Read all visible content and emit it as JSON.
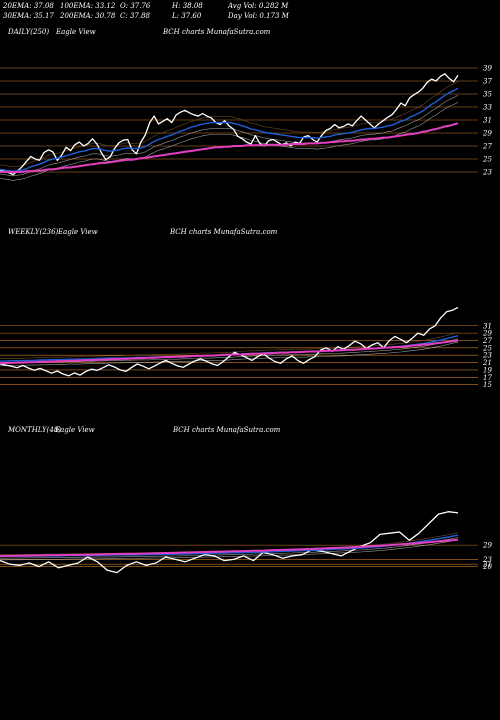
{
  "header": {
    "row1": [
      {
        "label": "20EMA:",
        "value": "37.08"
      },
      {
        "label": "100EMA:",
        "value": "33.12"
      },
      {
        "label": "O:",
        "value": "37.76"
      },
      {
        "label": "H:",
        "value": "38.08"
      },
      {
        "label": "Avg Vol:",
        "value": "0.282  M"
      }
    ],
    "row2": [
      {
        "label": "30EMA:",
        "value": "35.17"
      },
      {
        "label": "200EMA:",
        "value": "30.78"
      },
      {
        "label": "C:",
        "value": "37.88"
      },
      {
        "label": "L:",
        "value": "37.60"
      },
      {
        "label": "Day Vol:",
        "value": "0.173  M"
      }
    ]
  },
  "panels": [
    {
      "period": "DAILY(250)",
      "view": "Eagle  View",
      "site": "BCH charts MunafaSutra.com"
    },
    {
      "period": "WEEKLY(236)",
      "view": "Eagle  View",
      "site": "BCH charts MunafaSutra.com"
    },
    {
      "period": "MONTHLY(48)",
      "view": "Eagle  View",
      "site": "BCH charts MunafaSutra.com"
    }
  ],
  "colors": {
    "background": "#000000",
    "price": "#ffffff",
    "ema20": "#1f5fd6",
    "ema200": "#e040c0",
    "grid": "#c87a2a",
    "ma_thin": "#c0c0c0"
  },
  "chart_data": [
    {
      "type": "line",
      "title": "DAILY(250)",
      "ylim": [
        21,
        41
      ],
      "y_ticks": [
        23,
        25,
        27,
        29,
        31,
        33,
        35,
        37,
        39
      ],
      "series": [
        {
          "values": [
            23.2,
            23.1,
            22.9,
            22.6,
            23.2,
            23.8,
            24.6,
            25.4,
            25.0,
            24.8,
            26.0,
            26.4,
            26.1,
            24.8,
            25.6,
            26.8,
            26.3,
            27.2,
            27.6,
            27.0,
            27.4,
            28.1,
            27.3,
            26.0,
            24.9,
            25.3,
            26.6,
            27.5,
            27.9,
            28.0,
            26.4,
            25.8,
            27.6,
            28.7,
            30.6,
            31.6,
            30.4,
            30.8,
            31.2,
            30.6,
            31.8,
            32.2,
            32.5,
            32.1,
            31.8,
            31.6,
            32.0,
            31.6,
            31.3,
            30.6,
            30.3,
            30.9,
            30.1,
            29.6,
            28.5,
            28.1,
            27.6,
            27.3,
            28.6,
            27.4,
            27.0,
            27.8,
            28.0,
            27.6,
            27.2,
            27.5,
            27.0,
            27.6,
            27.4,
            28.4,
            28.6,
            28.0,
            27.6,
            28.6,
            29.4,
            29.7,
            30.3,
            29.8,
            30.0,
            30.4,
            30.1,
            30.9,
            31.6,
            31.0,
            30.4,
            29.8,
            30.4,
            30.9,
            31.4,
            31.8,
            32.6,
            33.6,
            33.2,
            34.4,
            34.9,
            35.3,
            35.9,
            36.8,
            37.3,
            37.0,
            37.7,
            38.1,
            37.4,
            36.9,
            37.9
          ]
        },
        {
          "values": [
            23.4,
            23.3,
            23.2,
            23.1,
            23.2,
            23.3,
            23.5,
            23.8,
            24.0,
            24.2,
            24.5,
            24.8,
            25.0,
            25.1,
            25.3,
            25.5,
            25.7,
            25.9,
            26.1,
            26.2,
            26.4,
            26.6,
            26.6,
            26.5,
            26.3,
            26.2,
            26.3,
            26.4,
            26.6,
            26.7,
            26.6,
            26.6,
            26.7,
            26.9,
            27.3,
            27.7,
            28.0,
            28.2,
            28.5,
            28.7,
            29.0,
            29.3,
            29.5,
            29.8,
            30.0,
            30.2,
            30.4,
            30.5,
            30.6,
            30.6,
            30.6,
            30.6,
            30.6,
            30.5,
            30.3,
            30.1,
            29.9,
            29.6,
            29.5,
            29.3,
            29.1,
            29.0,
            28.9,
            28.8,
            28.7,
            28.6,
            28.5,
            28.4,
            28.3,
            28.3,
            28.3,
            28.3,
            28.2,
            28.3,
            28.4,
            28.5,
            28.7,
            28.8,
            28.9,
            29.0,
            29.1,
            29.3,
            29.5,
            29.6,
            29.7,
            29.7,
            29.8,
            29.9,
            30.1,
            30.2,
            30.5,
            30.8,
            31.0,
            31.4,
            31.7,
            32.0,
            32.4,
            32.9,
            33.4,
            33.8,
            34.3,
            34.8,
            35.2,
            35.5,
            35.9
          ]
        },
        {
          "values": [
            23.0,
            23.0,
            23.0,
            23.0,
            23.0,
            23.0,
            23.1,
            23.1,
            23.2,
            23.2,
            23.3,
            23.4,
            23.4,
            23.5,
            23.6,
            23.7,
            23.7,
            23.8,
            23.9,
            24.0,
            24.1,
            24.2,
            24.3,
            24.4,
            24.4,
            24.5,
            24.6,
            24.7,
            24.8,
            24.9,
            24.9,
            25.0,
            25.1,
            25.2,
            25.3,
            25.4,
            25.5,
            25.6,
            25.7,
            25.8,
            25.9,
            26.0,
            26.1,
            26.2,
            26.3,
            26.4,
            26.5,
            26.6,
            26.7,
            26.8,
            26.8,
            26.9,
            26.9,
            27.0,
            27.0,
            27.0,
            27.1,
            27.1,
            27.1,
            27.1,
            27.1,
            27.2,
            27.2,
            27.2,
            27.2,
            27.2,
            27.3,
            27.3,
            27.3,
            27.3,
            27.4,
            27.4,
            27.4,
            27.5,
            27.5,
            27.6,
            27.6,
            27.7,
            27.7,
            27.8,
            27.8,
            27.9,
            28.0,
            28.0,
            28.1,
            28.1,
            28.2,
            28.3,
            28.3,
            28.4,
            28.5,
            28.6,
            28.7,
            28.8,
            28.9,
            29.0,
            29.2,
            29.3,
            29.5,
            29.6,
            29.8,
            30.0,
            30.1,
            30.3,
            30.5
          ]
        }
      ]
    },
    {
      "type": "line",
      "title": "WEEKLY(236)",
      "ylim": [
        13,
        38
      ],
      "y_ticks": [
        15,
        17,
        19,
        21,
        23,
        25,
        27,
        29,
        31
      ],
      "series": [
        {
          "values": [
            20.6,
            20.3,
            20.0,
            19.6,
            20.2,
            19.5,
            18.9,
            19.4,
            18.8,
            18.1,
            18.7,
            17.9,
            17.4,
            18.2,
            17.6,
            18.6,
            19.2,
            18.9,
            19.6,
            20.4,
            19.8,
            19.0,
            18.6,
            19.7,
            20.6,
            20.0,
            19.3,
            20.1,
            20.9,
            21.6,
            20.8,
            20.1,
            19.7,
            20.6,
            21.4,
            22.0,
            21.4,
            20.7,
            20.2,
            21.3,
            22.6,
            23.8,
            23.1,
            22.4,
            21.6,
            22.6,
            23.4,
            22.2,
            21.3,
            20.8,
            22.0,
            22.8,
            21.6,
            20.8,
            21.8,
            22.6,
            24.4,
            25.0,
            24.1,
            25.3,
            24.6,
            25.6,
            26.8,
            26.1,
            24.8,
            25.8,
            26.4,
            25.0,
            27.0,
            28.1,
            27.3,
            26.4,
            27.6,
            29.0,
            28.4,
            30.1,
            31.0,
            33.2,
            34.8,
            35.2,
            36.0
          ]
        },
        {
          "values": [
            21.4,
            21.4,
            21.5,
            21.5,
            21.5,
            21.6,
            21.6,
            21.7,
            21.7,
            21.8,
            21.8,
            21.8,
            21.9,
            21.9,
            21.9,
            22.0,
            22.0,
            22.1,
            22.1,
            22.2,
            22.2,
            22.2,
            22.3,
            22.3,
            22.4,
            22.4,
            22.4,
            22.5,
            22.5,
            22.6,
            22.6,
            22.6,
            22.7,
            22.7,
            22.8,
            22.9,
            22.9,
            22.9,
            23.0,
            23.0,
            23.1,
            23.2,
            23.3,
            23.4,
            23.5,
            23.5,
            23.6,
            23.7,
            23.7,
            23.8,
            23.8,
            23.9,
            23.9,
            23.9,
            24.0,
            24.0,
            24.1,
            24.1,
            24.2,
            24.2,
            24.3,
            24.4,
            24.5,
            24.6,
            24.7,
            24.8,
            24.9,
            25.0,
            25.1,
            25.3,
            25.4,
            25.6,
            25.8,
            26.0,
            26.2,
            26.5,
            26.8,
            27.1,
            27.5,
            27.9,
            28.3
          ]
        },
        {
          "values": [
            20.8,
            20.9,
            20.9,
            21.0,
            21.0,
            21.1,
            21.1,
            21.2,
            21.2,
            21.3,
            21.4,
            21.4,
            21.5,
            21.5,
            21.6,
            21.6,
            21.7,
            21.7,
            21.8,
            21.9,
            21.9,
            22.0,
            22.0,
            22.1,
            22.2,
            22.2,
            22.3,
            22.3,
            22.4,
            22.5,
            22.5,
            22.6,
            22.6,
            22.7,
            22.8,
            22.8,
            22.9,
            22.9,
            23.0,
            23.1,
            23.1,
            23.2,
            23.2,
            23.3,
            23.4,
            23.4,
            23.5,
            23.5,
            23.6,
            23.7,
            23.7,
            23.8,
            23.8,
            23.9,
            24.0,
            24.0,
            24.1,
            24.2,
            24.2,
            24.3,
            24.4,
            24.5,
            24.5,
            24.6,
            24.7,
            24.8,
            24.9,
            25.0,
            25.1,
            25.2,
            25.3,
            25.4,
            25.6,
            25.7,
            25.9,
            26.0,
            26.2,
            26.4,
            26.6,
            26.8,
            27.0
          ]
        }
      ]
    },
    {
      "type": "line",
      "title": "MONTHLY(48)",
      "ylim": [
        6,
        50
      ],
      "y_ticks": [
        20,
        21,
        23,
        29
      ],
      "series": [
        {
          "values": [
            22.5,
            21.0,
            20.5,
            21.5,
            20.0,
            22.0,
            19.5,
            20.5,
            21.5,
            24.0,
            22.0,
            18.5,
            17.5,
            20.5,
            22.0,
            20.5,
            21.5,
            24.0,
            23.0,
            22.0,
            23.5,
            25.0,
            24.5,
            22.5,
            23.0,
            24.5,
            22.5,
            26.0,
            25.0,
            23.5,
            24.5,
            25.0,
            27.0,
            26.5,
            25.5,
            24.5,
            26.5,
            28.5,
            30.0,
            33.5,
            34.0,
            34.5,
            31.0,
            34.0,
            38.0,
            42.0,
            43.0,
            42.5
          ]
        },
        {
          "values": [
            24.2,
            24.3,
            24.3,
            24.4,
            24.4,
            24.5,
            24.5,
            24.6,
            24.6,
            24.7,
            24.7,
            24.8,
            24.8,
            24.9,
            24.9,
            25.0,
            25.1,
            25.1,
            25.2,
            25.3,
            25.4,
            25.5,
            25.6,
            25.7,
            25.8,
            25.9,
            26.0,
            26.1,
            26.2,
            26.4,
            26.5,
            26.7,
            26.8,
            27.0,
            27.2,
            27.4,
            27.6,
            27.8,
            28.1,
            28.4,
            28.8,
            29.3,
            29.8,
            30.4,
            31.0,
            31.7,
            32.4,
            33.2
          ]
        },
        {
          "values": [
            24.5,
            24.5,
            24.6,
            24.6,
            24.7,
            24.8,
            24.8,
            24.9,
            25.0,
            25.0,
            25.1,
            25.2,
            25.3,
            25.3,
            25.4,
            25.5,
            25.6,
            25.7,
            25.8,
            25.9,
            26.0,
            26.1,
            26.2,
            26.3,
            26.4,
            26.5,
            26.6,
            26.7,
            26.9,
            27.0,
            27.1,
            27.3,
            27.4,
            27.6,
            27.8,
            27.9,
            28.1,
            28.3,
            28.5,
            28.7,
            29.0,
            29.3,
            29.6,
            29.9,
            30.2,
            30.6,
            30.9,
            31.3
          ]
        }
      ]
    }
  ]
}
